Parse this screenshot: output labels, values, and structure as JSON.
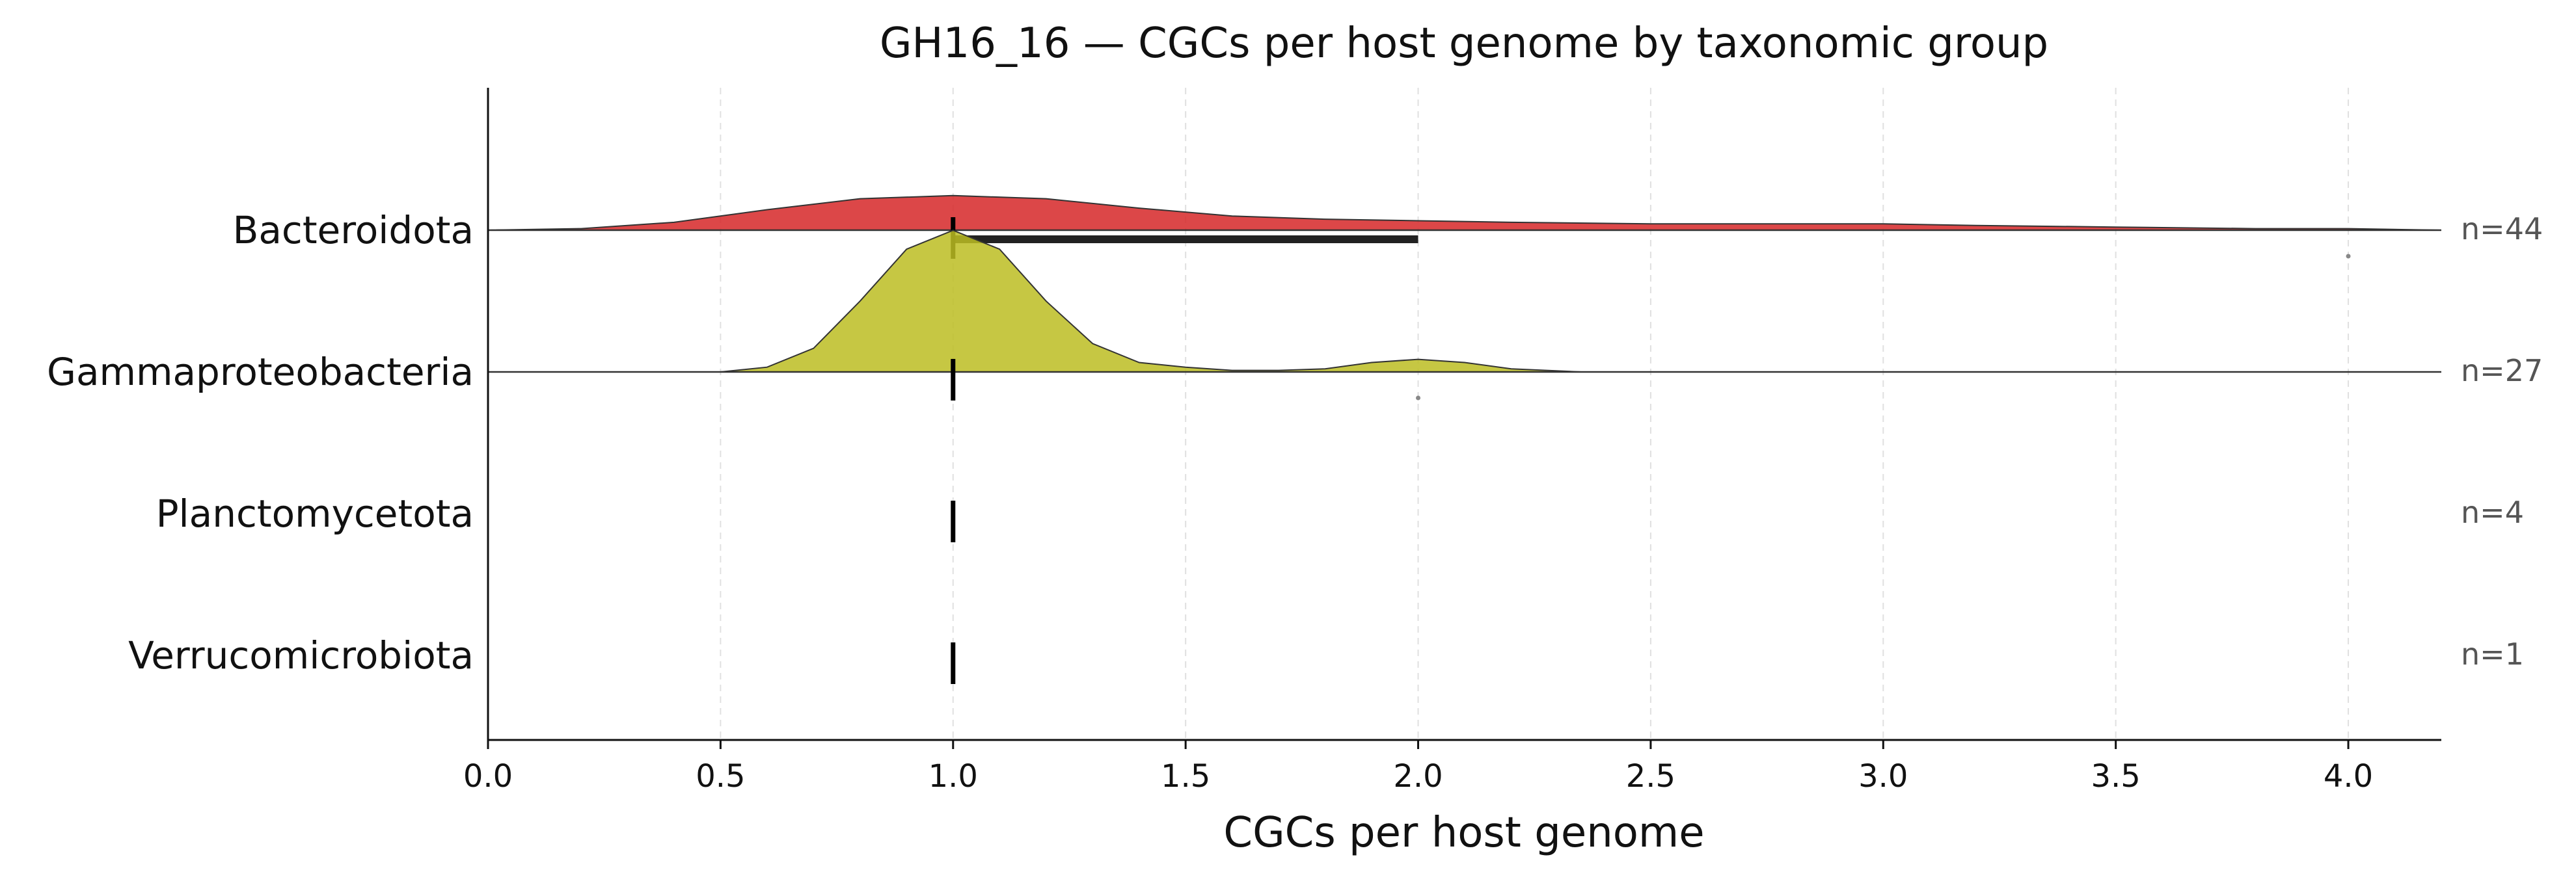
{
  "chart_data": {
    "type": "ridgeline",
    "title": "GH16_16 — CGCs per host genome by taxonomic group",
    "xlabel": "CGCs per host genome",
    "ylabel": "",
    "xlim": [
      0.0,
      4.2
    ],
    "xticks": [
      "0.0",
      "0.5",
      "1.0",
      "1.5",
      "2.0",
      "2.5",
      "3.0",
      "3.5",
      "4.0"
    ],
    "grid": "vertical dashed",
    "groups": [
      {
        "name": "Bacteroidota",
        "n_label": "n=44",
        "color": "#d62728",
        "density": [
          [
            0.0,
            0.0
          ],
          [
            0.2,
            0.01
          ],
          [
            0.4,
            0.05
          ],
          [
            0.6,
            0.13
          ],
          [
            0.8,
            0.2
          ],
          [
            1.0,
            0.22
          ],
          [
            1.2,
            0.2
          ],
          [
            1.4,
            0.14
          ],
          [
            1.6,
            0.09
          ],
          [
            1.8,
            0.07
          ],
          [
            2.0,
            0.06
          ],
          [
            2.2,
            0.05
          ],
          [
            2.5,
            0.04
          ],
          [
            2.8,
            0.04
          ],
          [
            3.0,
            0.04
          ],
          [
            3.2,
            0.03
          ],
          [
            3.5,
            0.02
          ],
          [
            3.8,
            0.01
          ],
          [
            4.0,
            0.01
          ],
          [
            4.2,
            0.0
          ]
        ],
        "median": 1.0,
        "iqr": [
          1.0,
          2.0
        ],
        "outliers": [
          4.0
        ]
      },
      {
        "name": "Gammaproteobacteria",
        "n_label": "n=27",
        "color": "#bcbd22",
        "density": [
          [
            0.5,
            0.0
          ],
          [
            0.6,
            0.03
          ],
          [
            0.7,
            0.15
          ],
          [
            0.8,
            0.45
          ],
          [
            0.9,
            0.78
          ],
          [
            1.0,
            0.9
          ],
          [
            1.1,
            0.78
          ],
          [
            1.2,
            0.45
          ],
          [
            1.3,
            0.18
          ],
          [
            1.4,
            0.06
          ],
          [
            1.5,
            0.03
          ],
          [
            1.6,
            0.01
          ],
          [
            1.7,
            0.01
          ],
          [
            1.8,
            0.02
          ],
          [
            1.9,
            0.06
          ],
          [
            2.0,
            0.08
          ],
          [
            2.1,
            0.06
          ],
          [
            2.2,
            0.02
          ],
          [
            2.35,
            0.0
          ]
        ],
        "median": 1.0,
        "iqr": [
          1.0,
          1.0
        ],
        "outliers": [
          2.0
        ]
      },
      {
        "name": "Planctomycetota",
        "n_label": "n=4",
        "color": "#1f77b4",
        "density": [],
        "median": 1.0,
        "iqr": [
          1.0,
          1.0
        ],
        "outliers": []
      },
      {
        "name": "Verrucomicrobiota",
        "n_label": "n=1",
        "color": "#9467bd",
        "density": [],
        "median": 1.0,
        "iqr": [
          1.0,
          1.0
        ],
        "outliers": []
      }
    ]
  }
}
